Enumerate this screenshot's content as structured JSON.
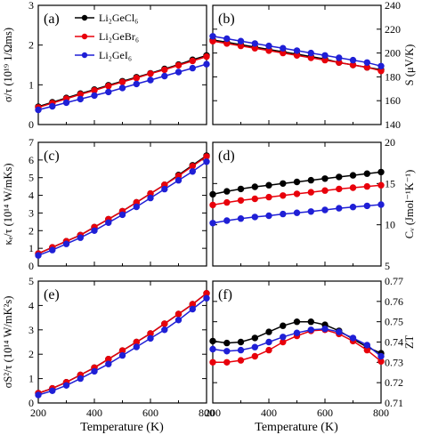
{
  "figure": {
    "xlabel": "Temperature (K)",
    "legend": [
      "Li₂GeCl₆",
      "Li₂GeBr₆",
      "Li₂GeI₆"
    ]
  },
  "colors": {
    "Cl": "#000000",
    "Br": "#e8000b",
    "I": "#1f1fd6"
  },
  "chart_data": [
    {
      "panel": "(a)",
      "type": "line",
      "ylabel": "σ/τ (10¹⁹ 1/Ωms)",
      "y_axis_side": "left",
      "xlim": [
        200,
        800
      ],
      "ylim": [
        0,
        3
      ],
      "xticks": [
        200,
        400,
        600,
        800
      ],
      "yticks": [
        0,
        1,
        2,
        3
      ],
      "x": [
        200,
        250,
        300,
        350,
        400,
        450,
        500,
        550,
        600,
        650,
        700,
        750,
        800
      ],
      "series": [
        {
          "name": "Li₂GeCl₆",
          "key": "Cl",
          "values": [
            0.45,
            0.56,
            0.67,
            0.78,
            0.88,
            0.99,
            1.09,
            1.19,
            1.29,
            1.4,
            1.51,
            1.63,
            1.74
          ]
        },
        {
          "name": "Li₂GeBr₆",
          "key": "Br",
          "values": [
            0.43,
            0.54,
            0.65,
            0.76,
            0.86,
            0.97,
            1.07,
            1.17,
            1.28,
            1.38,
            1.49,
            1.6,
            1.71
          ]
        },
        {
          "name": "Li₂GeI₆",
          "key": "I",
          "values": [
            0.37,
            0.46,
            0.55,
            0.64,
            0.73,
            0.82,
            0.92,
            1.02,
            1.12,
            1.22,
            1.32,
            1.42,
            1.52
          ]
        }
      ]
    },
    {
      "panel": "(b)",
      "type": "line",
      "ylabel": "S (μV/K)",
      "y_axis_side": "right",
      "xlim": [
        200,
        800
      ],
      "ylim": [
        140,
        240
      ],
      "xticks": [
        200,
        400,
        600,
        800
      ],
      "yticks": [
        140,
        160,
        180,
        200,
        220,
        240
      ],
      "x": [
        200,
        250,
        300,
        350,
        400,
        450,
        500,
        550,
        600,
        650,
        700,
        750,
        800
      ],
      "series": [
        {
          "name": "Li₂GeCl₆",
          "key": "Cl",
          "values": [
            211,
            209,
            207,
            205,
            203,
            201,
            199,
            197,
            195,
            192,
            190,
            188,
            186
          ]
        },
        {
          "name": "Li₂GeBr₆",
          "key": "Br",
          "values": [
            210,
            208,
            206,
            204,
            202,
            200,
            198,
            196,
            194,
            192,
            190,
            188,
            185
          ]
        },
        {
          "name": "Li₂GeI₆",
          "key": "I",
          "values": [
            214,
            212,
            210,
            208,
            206,
            204,
            202,
            200,
            198,
            196,
            194,
            192,
            189
          ]
        }
      ]
    },
    {
      "panel": "(c)",
      "type": "line",
      "ylabel": "κₑ/τ (10¹⁴ W/mKs)",
      "y_axis_side": "left",
      "xlim": [
        200,
        800
      ],
      "ylim": [
        0,
        7
      ],
      "xticks": [
        200,
        400,
        600,
        800
      ],
      "yticks": [
        0,
        1,
        2,
        3,
        4,
        5,
        6,
        7
      ],
      "x": [
        200,
        250,
        300,
        350,
        400,
        450,
        500,
        550,
        600,
        650,
        700,
        750,
        800
      ],
      "series": [
        {
          "name": "Li₂GeCl₆",
          "key": "Cl",
          "values": [
            0.7,
            1.05,
            1.4,
            1.75,
            2.2,
            2.65,
            3.1,
            3.6,
            4.1,
            4.6,
            5.15,
            5.7,
            6.25
          ]
        },
        {
          "name": "Li₂GeBr₆",
          "key": "Br",
          "values": [
            0.7,
            1.05,
            1.4,
            1.75,
            2.2,
            2.65,
            3.1,
            3.6,
            4.1,
            4.6,
            5.1,
            5.65,
            6.2
          ]
        },
        {
          "name": "Li₂GeI₆",
          "key": "I",
          "values": [
            0.6,
            0.9,
            1.25,
            1.6,
            2.0,
            2.45,
            2.9,
            3.35,
            3.85,
            4.35,
            4.85,
            5.35,
            5.9
          ]
        }
      ]
    },
    {
      "panel": "(d)",
      "type": "line",
      "ylabel": "Cᵥ (Jmol⁻¹K⁻¹)",
      "y_axis_side": "right",
      "xlim": [
        200,
        800
      ],
      "ylim": [
        5,
        20
      ],
      "xticks": [
        200,
        400,
        600,
        800
      ],
      "yticks": [
        5,
        10,
        15,
        20
      ],
      "x": [
        200,
        250,
        300,
        350,
        400,
        450,
        500,
        550,
        600,
        650,
        700,
        750,
        800
      ],
      "series": [
        {
          "name": "Li₂GeCl₆",
          "key": "Cl",
          "values": [
            13.7,
            14.05,
            14.35,
            14.6,
            14.8,
            15.0,
            15.2,
            15.4,
            15.6,
            15.8,
            16.0,
            16.2,
            16.4
          ]
        },
        {
          "name": "Li₂GeBr₆",
          "key": "Br",
          "values": [
            12.4,
            12.7,
            12.95,
            13.15,
            13.35,
            13.55,
            13.75,
            13.95,
            14.15,
            14.35,
            14.5,
            14.65,
            14.8
          ]
        },
        {
          "name": "Li₂GeI₆",
          "key": "I",
          "values": [
            10.2,
            10.5,
            10.75,
            10.95,
            11.1,
            11.3,
            11.45,
            11.6,
            11.8,
            12.0,
            12.15,
            12.3,
            12.45
          ]
        }
      ]
    },
    {
      "panel": "(e)",
      "type": "line",
      "ylabel": "σS²/τ (10¹⁴ W/mK²s)",
      "y_axis_side": "left",
      "xlim": [
        200,
        800
      ],
      "ylim": [
        0,
        5
      ],
      "xticks": [
        200,
        400,
        600,
        800
      ],
      "yticks": [
        0,
        1,
        2,
        3,
        4,
        5
      ],
      "x": [
        200,
        250,
        300,
        350,
        400,
        450,
        500,
        550,
        600,
        650,
        700,
        750,
        800
      ],
      "series": [
        {
          "name": "Li₂GeCl₆",
          "key": "Cl",
          "values": [
            0.4,
            0.6,
            0.85,
            1.15,
            1.45,
            1.8,
            2.15,
            2.5,
            2.85,
            3.25,
            3.65,
            4.05,
            4.5
          ]
        },
        {
          "name": "Li₂GeBr₆",
          "key": "Br",
          "values": [
            0.4,
            0.6,
            0.85,
            1.15,
            1.45,
            1.8,
            2.15,
            2.5,
            2.85,
            3.25,
            3.65,
            4.05,
            4.5
          ]
        },
        {
          "name": "Li₂GeI₆",
          "key": "I",
          "values": [
            0.33,
            0.5,
            0.72,
            1.0,
            1.3,
            1.6,
            1.95,
            2.3,
            2.65,
            3.0,
            3.4,
            3.85,
            4.3
          ]
        }
      ]
    },
    {
      "panel": "(f)",
      "type": "line",
      "ylabel": "ZT",
      "y_axis_side": "right",
      "xlim": [
        200,
        800
      ],
      "ylim": [
        0.71,
        0.77
      ],
      "xticks": [
        200,
        400,
        600,
        800
      ],
      "yticks": [
        0.71,
        0.72,
        0.73,
        0.74,
        0.75,
        0.76,
        0.77
      ],
      "x": [
        200,
        250,
        300,
        350,
        400,
        450,
        500,
        550,
        600,
        650,
        700,
        750,
        800
      ],
      "series": [
        {
          "name": "Li₂GeCl₆",
          "key": "Cl",
          "values": [
            0.7405,
            0.7395,
            0.74,
            0.742,
            0.745,
            0.748,
            0.75,
            0.75,
            0.7485,
            0.7455,
            0.7415,
            0.7375,
            0.7345
          ]
        },
        {
          "name": "Li₂GeBr₆",
          "key": "Br",
          "values": [
            0.73,
            0.73,
            0.731,
            0.733,
            0.736,
            0.74,
            0.743,
            0.7455,
            0.746,
            0.744,
            0.7405,
            0.736,
            0.7305
          ]
        },
        {
          "name": "Li₂GeI₆",
          "key": "I",
          "values": [
            0.7365,
            0.7355,
            0.736,
            0.7375,
            0.74,
            0.7425,
            0.7445,
            0.746,
            0.7465,
            0.745,
            0.742,
            0.7385,
            0.733
          ]
        }
      ]
    }
  ]
}
